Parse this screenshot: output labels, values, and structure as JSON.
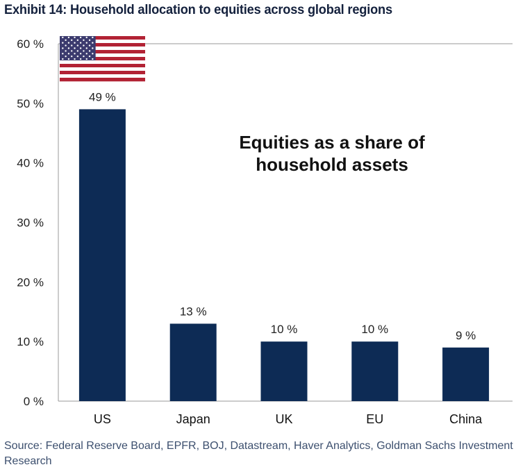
{
  "title": "Exhibit 14: Household allocation to equities across global regions",
  "source": "Source: Federal Reserve Board, EPFR, BOJ, Datastream, Haver Analytics, Goldman Sachs Investment Research",
  "chart_data": {
    "type": "bar",
    "title": "Exhibit 14: Household allocation to equities across global regions",
    "annotation_lines": [
      "Equities as a share of",
      "household assets"
    ],
    "categories": [
      "US",
      "Japan",
      "UK",
      "EU",
      "China"
    ],
    "values": [
      49,
      13,
      10,
      10,
      9
    ],
    "value_labels": [
      "49 %",
      "13 %",
      "10 %",
      "10 %",
      "9 %"
    ],
    "yticks": [
      0,
      10,
      20,
      30,
      40,
      50,
      60
    ],
    "ytick_labels": [
      "0 %",
      "10 %",
      "20 %",
      "30 %",
      "40 %",
      "50 %",
      "60 %"
    ],
    "ylim": [
      0,
      60
    ],
    "grid": false,
    "xlabel": "",
    "ylabel": "",
    "bar_color": "#0d2b55",
    "flag_icon": "us-flag-icon"
  }
}
